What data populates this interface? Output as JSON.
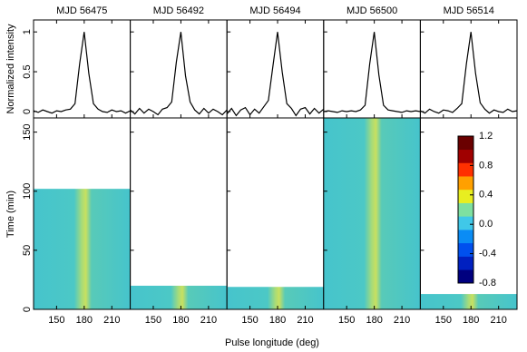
{
  "chart_data": {
    "type": "pulse-panels",
    "x_label": "Pulse longitude (deg)",
    "profile_ylabel": "Normalized intensity",
    "time_ylabel": "Time (min)",
    "x": [
      125,
      130,
      135,
      140,
      145,
      150,
      155,
      160,
      165,
      170,
      175,
      180,
      185,
      190,
      195,
      200,
      205,
      210,
      215,
      220,
      225,
      230
    ],
    "xlim": [
      125,
      230
    ],
    "xticks": [
      150,
      180,
      210
    ],
    "profile_ylim": [
      -0.08,
      1.15
    ],
    "profile_yticks": [
      0,
      0.5,
      1
    ],
    "time_ylim": [
      0,
      162
    ],
    "time_yticks": [
      0,
      50,
      100,
      150
    ],
    "line_color": "#000000",
    "panels": [
      {
        "title": "MJD 56475",
        "duration": 102,
        "profile": [
          0.01,
          -0.01,
          0.02,
          0.0,
          -0.02,
          0.01,
          0.0,
          0.02,
          0.03,
          0.1,
          0.6,
          1.0,
          0.48,
          0.1,
          0.03,
          0.0,
          -0.01,
          0.02,
          0.0,
          0.01,
          -0.02,
          0.01
        ]
      },
      {
        "title": "MJD 56492",
        "duration": 20,
        "profile": [
          0.02,
          -0.03,
          0.04,
          -0.02,
          0.03,
          0.0,
          -0.04,
          0.03,
          0.05,
          0.12,
          0.62,
          1.0,
          0.45,
          0.12,
          0.02,
          -0.03,
          0.04,
          -0.02,
          0.03,
          0.0,
          -0.04,
          0.02
        ]
      },
      {
        "title": "MJD 56494",
        "duration": 19,
        "profile": [
          -0.03,
          0.04,
          -0.05,
          0.02,
          0.05,
          -0.04,
          0.03,
          -0.02,
          0.06,
          0.14,
          0.58,
          1.0,
          0.5,
          0.1,
          0.04,
          -0.05,
          0.03,
          0.05,
          -0.03,
          0.04,
          -0.02,
          0.03
        ]
      },
      {
        "title": "MJD 56500",
        "duration": 162,
        "profile": [
          0.0,
          0.01,
          0.0,
          -0.01,
          0.01,
          0.0,
          0.01,
          0.0,
          0.02,
          0.08,
          0.6,
          1.0,
          0.46,
          0.08,
          0.02,
          0.01,
          0.0,
          -0.01,
          0.01,
          0.0,
          0.01,
          0.0
        ]
      },
      {
        "title": "MJD 56514",
        "duration": 13,
        "profile": [
          0.01,
          -0.02,
          0.03,
          0.0,
          -0.02,
          0.02,
          0.01,
          -0.01,
          0.04,
          0.1,
          0.6,
          1.0,
          0.48,
          0.11,
          0.03,
          -0.02,
          0.02,
          0.0,
          -0.01,
          0.03,
          0.0,
          0.01
        ]
      }
    ],
    "colorbar": {
      "lim": [
        -0.8,
        1.2
      ],
      "ticks": [
        -0.8,
        -0.4,
        {
          "value": 0,
          "label": "0.0"
        },
        0.4,
        0.8,
        1.2
      ],
      "colors": [
        "#00007f",
        "#0020c0",
        "#0050ee",
        "#0a8cf5",
        "#40c8e8",
        "#7ee0a0",
        "#e8ee20",
        "#ffa000",
        "#ff3000",
        "#a00000",
        "#6a0000"
      ]
    }
  }
}
